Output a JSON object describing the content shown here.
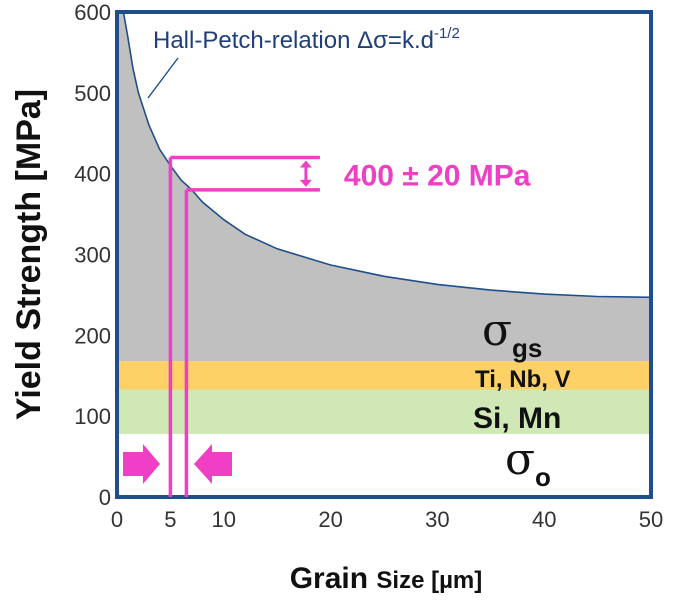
{
  "chart_data": {
    "type": "area",
    "xlabel_main": "Grain",
    "xlabel_rest": "Size  [µm]",
    "ylabel": "Yield Strength [MPa]",
    "xlim": [
      0,
      50
    ],
    "ylim": [
      0,
      600
    ],
    "x_ticks": [
      0,
      5,
      10,
      20,
      30,
      40,
      50
    ],
    "y_ticks": [
      0,
      100,
      200,
      300,
      400,
      500,
      600
    ],
    "curve": {
      "label_main": "Hall-Petch-relation  Δσ=k.d",
      "label_sup": "-1/2",
      "x": [
        0.6,
        1,
        1.5,
        2,
        3,
        4,
        5,
        6,
        7,
        8,
        10,
        12,
        15,
        20,
        25,
        30,
        35,
        40,
        45,
        50
      ],
      "y": [
        600,
        570,
        530,
        500,
        460,
        430,
        410,
        392,
        380,
        365,
        343,
        325,
        307,
        287,
        273,
        263,
        256,
        251,
        248,
        247
      ]
    },
    "bands": [
      {
        "label": "Ti, Nb, V",
        "y0": 133,
        "y1": 168,
        "color": "#fdd166"
      },
      {
        "label": "Si, Mn",
        "y0": 78,
        "y1": 133,
        "color": "#d0e8b5"
      }
    ],
    "base_fill_top": 168,
    "area_color": "#c0c0c0",
    "curve_color": "#1f4e8c",
    "annotation_color": "#ee3fc5",
    "range_annotation": {
      "label": "400 ± 20 MPa",
      "y_high": 420,
      "y_low": 380,
      "x_left": 5,
      "x_right": 6.5,
      "x_end": 19
    },
    "sigma_gs": {
      "symbol": "σ",
      "sub": "gs"
    },
    "sigma_o": {
      "symbol": "σ",
      "sub": "o"
    }
  }
}
